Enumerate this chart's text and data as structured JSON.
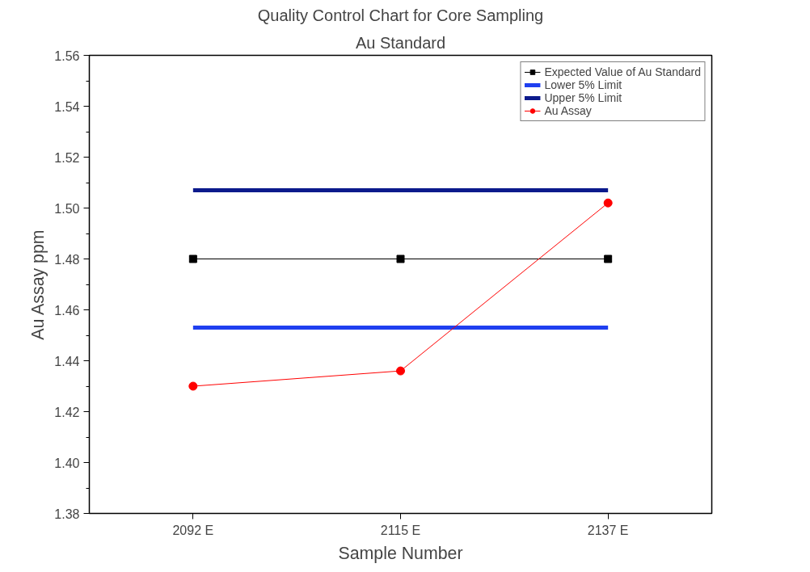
{
  "chart_data": {
    "type": "line",
    "title": "Quality Control Chart for Core Sampling",
    "subtitle": "Au Standard",
    "xlabel": "Sample Number",
    "ylabel": "Au Assay ppm",
    "categories": [
      "2092 E",
      "2115 E",
      "2137 E"
    ],
    "series": [
      {
        "name": "Expected Value of Au Standard",
        "color": "#000000",
        "marker": "square",
        "values": [
          1.48,
          1.48,
          1.48
        ]
      },
      {
        "name": "Lower 5% Limit",
        "color": "#1f3ff0",
        "marker": "none",
        "values": [
          1.453,
          1.453,
          1.453
        ]
      },
      {
        "name": "Upper 5% Limit",
        "color": "#0c1a8c",
        "marker": "none",
        "values": [
          1.507,
          1.507,
          1.507
        ]
      },
      {
        "name": "Au Assay",
        "color": "#ff0000",
        "marker": "circle",
        "values": [
          1.43,
          1.436,
          1.502
        ]
      }
    ],
    "ylim": [
      1.38,
      1.56
    ],
    "yticks": [
      1.38,
      {
        "value": 1.4,
        "label": "1.40"
      },
      1.42,
      1.44,
      1.46,
      1.48,
      {
        "value": 1.5,
        "label": "1.50"
      },
      1.52,
      1.54,
      1.56
    ],
    "grid": false,
    "legend": "top right",
    "line_style": "solid"
  }
}
